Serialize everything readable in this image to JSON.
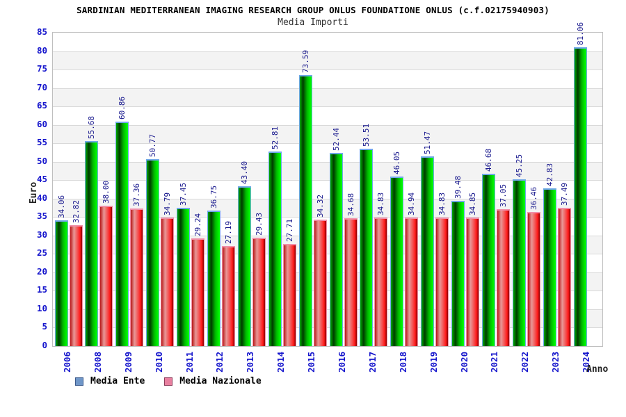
{
  "chart_data": {
    "type": "bar",
    "title": "SARDINIAN MEDITERRANEAN IMAGING RESEARCH GROUP ONLUS FOUNDATIONE ONLUS (c.f.02175940903)",
    "subtitle": "Media Importi",
    "xlabel": "Anno",
    "ylabel": "Euro",
    "ylim": [
      0,
      85
    ],
    "ytick_step": 5,
    "grid": "horizontal bands, alternating white/#f3f3f3, gridlines every 5",
    "legend_position": "bottom-left",
    "categories": [
      "2006",
      "2008",
      "2009",
      "2010",
      "2011",
      "2012",
      "2013",
      "2014",
      "2015",
      "2016",
      "2017",
      "2018",
      "2019",
      "2020",
      "2021",
      "2022",
      "2023",
      "2024"
    ],
    "series": [
      {
        "name": "Media Ente",
        "bar_color": "#00cc00",
        "swatch_color": "#6f96c8",
        "edge_color": "#6fa8e8",
        "values": [
          34.06,
          55.68,
          60.86,
          50.77,
          37.45,
          36.75,
          43.4,
          52.81,
          73.59,
          52.44,
          53.51,
          46.05,
          51.47,
          39.48,
          46.68,
          45.25,
          42.83,
          81.06
        ],
        "labels": [
          "34.06",
          "55.68",
          "60.86",
          "50.77",
          "37.45",
          "36.75",
          "43.40",
          "52.81",
          "73.59",
          "52.44",
          "53.51",
          "46.05",
          "51.47",
          "39.48",
          "46.68",
          "45.25",
          "42.83",
          "81.06"
        ]
      },
      {
        "name": "Media Nazionale",
        "bar_color": "#e82222",
        "swatch_color": "#e87f9f",
        "edge_color": "#f08fa8",
        "values": [
          32.82,
          38.0,
          37.36,
          34.79,
          29.24,
          27.19,
          29.43,
          27.71,
          34.32,
          34.68,
          34.83,
          34.94,
          34.83,
          34.85,
          37.05,
          36.46,
          37.49,
          null
        ],
        "labels": [
          "32.82",
          "38.00",
          "37.36",
          "34.79",
          "29.24",
          "27.19",
          "29.43",
          "27.71",
          "34.32",
          "34.68",
          "34.83",
          "34.94",
          "34.83",
          "34.85",
          "37.05",
          "36.46",
          "37.49",
          null
        ]
      }
    ],
    "colors": {
      "tick_label": "#1414cc",
      "value_label": "#16168c",
      "band": "#f3f3f3",
      "gridline": "#d9d9d9",
      "plot_border": "#bfbfbf",
      "title": "#000000",
      "subtitle": "#333333"
    }
  }
}
